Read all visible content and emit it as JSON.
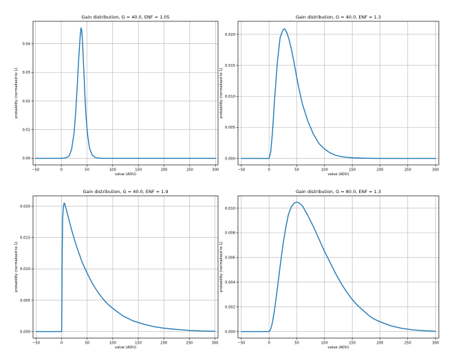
{
  "chart_data": [
    {
      "type": "line",
      "title": "Gain distribution, G = 40.0, ENF = 1.05",
      "xlabel": "value (ADU)",
      "ylabel": "probability (normalised to 1)",
      "xlim": [
        -55,
        305
      ],
      "ylim": [
        -0.0023,
        0.0478
      ],
      "xticks": [
        -50,
        0,
        50,
        100,
        150,
        200,
        250,
        300
      ],
      "yticks": [
        0.0,
        0.01,
        0.02,
        0.03,
        0.04
      ],
      "ytick_labels": [
        "0.00",
        "0.01",
        "0.02",
        "0.03",
        "0.04"
      ],
      "grid": true,
      "color": "#1f77b4",
      "series": [
        {
          "x": [
            -50,
            0,
            10,
            15,
            20,
            25,
            28,
            31,
            34,
            37,
            38.5,
            40,
            42,
            44,
            46,
            48,
            51,
            55,
            60,
            65,
            70,
            80,
            100,
            150,
            200,
            250,
            300
          ],
          "y": [
            0,
            0,
            0.0002,
            0.0008,
            0.003,
            0.009,
            0.016,
            0.025,
            0.035,
            0.0432,
            0.0455,
            0.0445,
            0.038,
            0.03,
            0.022,
            0.015,
            0.0085,
            0.0035,
            0.0012,
            0.0004,
            0.0001,
            0,
            0,
            0,
            0,
            0,
            0
          ]
        }
      ]
    },
    {
      "type": "line",
      "title": "Gain distribution, G = 40.0, ENF = 1.3",
      "xlabel": "value (ADU)",
      "ylabel": "probability (normalised to 1)",
      "xlim": [
        -56,
        306
      ],
      "ylim": [
        -0.00105,
        0.0221
      ],
      "xticks": [
        -50,
        0,
        50,
        100,
        150,
        200,
        250,
        300
      ],
      "yticks": [
        0.0,
        0.005,
        0.01,
        0.015,
        0.02
      ],
      "ytick_labels": [
        "0.000",
        "0.005",
        "0.010",
        "0.015",
        "0.020"
      ],
      "grid": true,
      "color": "#1f77b4",
      "series": [
        {
          "x": [
            -50,
            0,
            3,
            6,
            10,
            15,
            20,
            25,
            28,
            32,
            36,
            40,
            45,
            50,
            55,
            60,
            70,
            80,
            90,
            100,
            110,
            120,
            130,
            140,
            150,
            170,
            200,
            250,
            300
          ],
          "y": [
            0,
            0,
            0.001,
            0.004,
            0.0095,
            0.0155,
            0.0195,
            0.0207,
            0.0209,
            0.0203,
            0.0192,
            0.0177,
            0.0155,
            0.013,
            0.0108,
            0.0088,
            0.006,
            0.0039,
            0.0024,
            0.0015,
            0.0009,
            0.0005,
            0.0003,
            0.00018,
            0.0001,
            3e-05,
            0,
            0,
            0
          ]
        }
      ]
    },
    {
      "type": "line",
      "title": "Gain distribution, G = 40.0, ENF = 1.9",
      "xlabel": "value (ADU)",
      "ylabel": "probability (normalised to 1)",
      "xlim": [
        -56,
        306
      ],
      "ylim": [
        -0.00103,
        0.02165
      ],
      "xticks": [
        -50,
        0,
        50,
        100,
        150,
        200,
        250,
        300
      ],
      "yticks": [
        0.0,
        0.005,
        0.01,
        0.015,
        0.02
      ],
      "ytick_labels": [
        "0.000",
        "0.005",
        "0.010",
        "0.015",
        "0.020"
      ],
      "grid": true,
      "color": "#1f77b4",
      "series": [
        {
          "x": [
            -50,
            0,
            0.5,
            1,
            2,
            3,
            4,
            5,
            6,
            8,
            10,
            15,
            20,
            25,
            30,
            40,
            50,
            60,
            70,
            80,
            90,
            100,
            120,
            140,
            160,
            180,
            200,
            220,
            250,
            275,
            300
          ],
          "y": [
            0,
            0,
            0.004,
            0.012,
            0.018,
            0.0195,
            0.0202,
            0.0205,
            0.0204,
            0.0198,
            0.0192,
            0.0176,
            0.0161,
            0.0147,
            0.0134,
            0.0111,
            0.0093,
            0.0077,
            0.0064,
            0.0053,
            0.0044,
            0.0037,
            0.0025,
            0.0017,
            0.0012,
            0.0008,
            0.00055,
            0.00038,
            0.0002,
            0.0001,
            6e-05
          ]
        }
      ]
    },
    {
      "type": "line",
      "title": "Gain distribution, G = 80.0, ENF = 1.3",
      "xlabel": "value (ADU)",
      "ylabel": "probability (normalised to 1)",
      "xlim": [
        -56,
        306
      ],
      "ylim": [
        -0.000525,
        0.011
      ],
      "xticks": [
        -50,
        0,
        50,
        100,
        150,
        200,
        250,
        300
      ],
      "yticks": [
        0.0,
        0.002,
        0.004,
        0.006,
        0.008,
        0.01
      ],
      "ytick_labels": [
        "0.000",
        "0.002",
        "0.004",
        "0.006",
        "0.008",
        "0.010"
      ],
      "grid": true,
      "color": "#1f77b4",
      "series": [
        {
          "x": [
            -50,
            0,
            3,
            6,
            10,
            15,
            20,
            25,
            30,
            35,
            40,
            45,
            50,
            55,
            60,
            65,
            70,
            80,
            90,
            100,
            110,
            120,
            130,
            140,
            150,
            160,
            170,
            180,
            190,
            200,
            220,
            240,
            260,
            280,
            300
          ],
          "y": [
            0,
            0,
            0.0002,
            0.0007,
            0.0018,
            0.0035,
            0.0053,
            0.007,
            0.0084,
            0.0095,
            0.0101,
            0.0104,
            0.0105,
            0.0104,
            0.0102,
            0.0098,
            0.0094,
            0.0085,
            0.0075,
            0.0065,
            0.0056,
            0.0047,
            0.0039,
            0.0032,
            0.0026,
            0.0021,
            0.0017,
            0.0013,
            0.001,
            0.0008,
            0.00046,
            0.00026,
            0.00014,
            7e-05,
            3e-05
          ]
        }
      ]
    }
  ]
}
